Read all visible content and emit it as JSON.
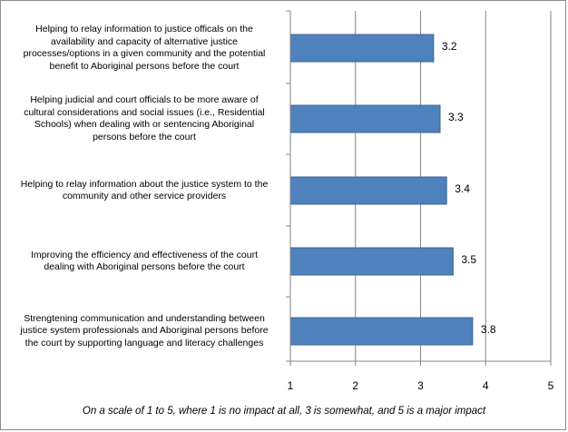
{
  "chart_data": {
    "type": "bar",
    "orientation": "horizontal",
    "categories": [
      "Helping to relay information to justice officals on the availability and capacity of alternative justice processes/options in a given community and the potential benefit to Aboriginal persons before the court",
      "Helping  judicial and court officials to be more aware of cultural considerations and social issues (i.e., Residential Schools) when dealing with or sentencing Aboriginal persons before the court",
      "Helping to relay information about the justice system to the community and other service providers",
      "Improving the efficiency and effectiveness of the court dealing with Aboriginal persons before the court",
      "Strengtening communication and understanding between justice system professionals and Aboriginal persons before the court by supporting language and literacy challenges"
    ],
    "category_lines": [
      [
        "Helping to relay information to justice officals on the",
        "availability and capacity of alternative justice",
        "processes/options in a given community and the potential",
        "benefit to Aboriginal persons before the court"
      ],
      [
        "Helping  judicial and court officials to be more aware of",
        "cultural considerations and social issues (i.e., Residential",
        "Schools) when dealing with or sentencing Aboriginal",
        "persons before the court"
      ],
      [
        "Helping to relay information about the justice system to the",
        "community and other service providers"
      ],
      [
        "Improving the efficiency and effectiveness of the court",
        "dealing with Aboriginal persons before the court"
      ],
      [
        "Strengtening communication and understanding between",
        "justice system professionals and Aboriginal persons before",
        "the court by supporting language and literacy challenges"
      ]
    ],
    "values": [
      3.2,
      3.3,
      3.4,
      3.5,
      3.8
    ],
    "data_labels": [
      "3.2",
      "3.3",
      "3.4",
      "3.5",
      "3.8"
    ],
    "xlim": [
      1,
      5
    ],
    "ticks": [
      "1",
      "2",
      "3",
      "4",
      "5"
    ],
    "xlabel": "On a scale of 1 to 5, where 1 is no impact at all, 3 is somewhat, and 5 is a  major impact",
    "grid": "vertical",
    "bar_color": "#4f81bd",
    "bar_border_color": "#3c6696",
    "grid_color": "#868686"
  }
}
